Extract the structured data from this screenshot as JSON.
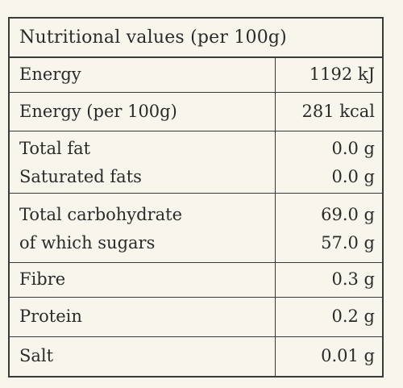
{
  "table": {
    "title": "Nutritional values (per 100g)",
    "rows": [
      {
        "labels": [
          "Energy"
        ],
        "values": [
          "1192 kJ"
        ]
      },
      {
        "labels": [
          "Energy (per 100g)"
        ],
        "values": [
          "281 kcal"
        ]
      },
      {
        "labels": [
          "Total fat",
          "Saturated fats"
        ],
        "values": [
          "0.0 g",
          "0.0 g"
        ]
      },
      {
        "labels": [
          "Total carbohydrate",
          "of which sugars"
        ],
        "values": [
          "69.0 g",
          "57.0 g"
        ]
      },
      {
        "labels": [
          "Fibre"
        ],
        "values": [
          "0.3 g"
        ]
      },
      {
        "labels": [
          "Protein"
        ],
        "values": [
          "0.2 g"
        ]
      },
      {
        "labels": [
          "Salt"
        ],
        "values": [
          "0.01 g"
        ]
      }
    ]
  }
}
